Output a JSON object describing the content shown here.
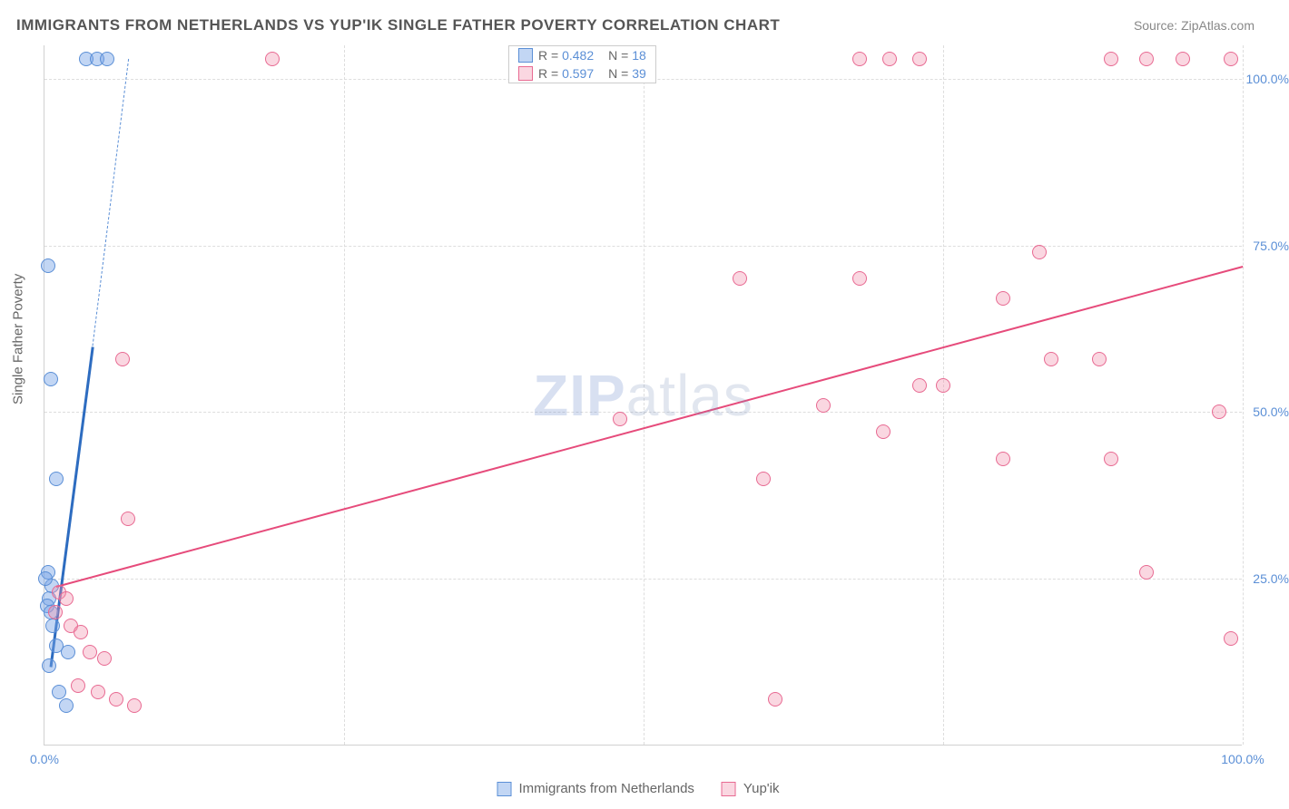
{
  "title": "IMMIGRANTS FROM NETHERLANDS VS YUP'IK SINGLE FATHER POVERTY CORRELATION CHART",
  "source_label": "Source: ZipAtlas.com",
  "y_axis_title": "Single Father Poverty",
  "watermark_a": "ZIP",
  "watermark_b": "atlas",
  "chart": {
    "type": "scatter",
    "xlim": [
      0,
      100
    ],
    "ylim": [
      0,
      105
    ],
    "background_color": "#ffffff",
    "grid_color": "#dddddd",
    "axis_color": "#d0d0d0",
    "tick_fontsize": 14,
    "tick_color": "#5b8fd6",
    "y_ticks": [
      {
        "v": 25,
        "label": "25.0%"
      },
      {
        "v": 50,
        "label": "50.0%"
      },
      {
        "v": 75,
        "label": "75.0%"
      },
      {
        "v": 100,
        "label": "100.0%"
      }
    ],
    "x_ticks": [
      {
        "v": 0,
        "label": "0.0%"
      },
      {
        "v": 25,
        "label": ""
      },
      {
        "v": 50,
        "label": ""
      },
      {
        "v": 75,
        "label": ""
      },
      {
        "v": 100,
        "label": "100.0%"
      }
    ],
    "marker_radius": 8,
    "marker_border_width": 1.2,
    "series": [
      {
        "name": "Immigrants from Netherlands",
        "key": "netherlands",
        "fill": "rgba(120,165,230,0.45)",
        "stroke": "#5b8fd6",
        "R": "0.482",
        "N": "18",
        "trend": {
          "x1": 0.5,
          "y1": 12,
          "x2": 4,
          "y2": 60,
          "width": 3,
          "dash": false,
          "color": "#2d6cc0"
        },
        "trend_ext": {
          "x1": 4,
          "y1": 60,
          "x2": 7,
          "y2": 103,
          "width": 1.2,
          "dash": true,
          "color": "#5b8fd6"
        },
        "points": [
          {
            "x": 0.3,
            "y": 72
          },
          {
            "x": 0.5,
            "y": 55
          },
          {
            "x": 1.0,
            "y": 40
          },
          {
            "x": 0.3,
            "y": 26
          },
          {
            "x": 0.6,
            "y": 24
          },
          {
            "x": 0.4,
            "y": 22
          },
          {
            "x": 0.2,
            "y": 21
          },
          {
            "x": 0.1,
            "y": 25
          },
          {
            "x": 0.5,
            "y": 20
          },
          {
            "x": 0.7,
            "y": 18
          },
          {
            "x": 1.0,
            "y": 15
          },
          {
            "x": 2.0,
            "y": 14
          },
          {
            "x": 0.4,
            "y": 12
          },
          {
            "x": 1.2,
            "y": 8
          },
          {
            "x": 1.8,
            "y": 6
          },
          {
            "x": 3.5,
            "y": 103
          },
          {
            "x": 4.4,
            "y": 103
          },
          {
            "x": 5.2,
            "y": 103
          }
        ]
      },
      {
        "name": "Yup'ik",
        "key": "yupik",
        "fill": "rgba(240,140,170,0.35)",
        "stroke": "#e86a92",
        "R": "0.597",
        "N": "39",
        "trend": {
          "x1": 1,
          "y1": 24,
          "x2": 100,
          "y2": 72,
          "width": 2.2,
          "dash": false,
          "color": "#e64b7b"
        },
        "points": [
          {
            "x": 19,
            "y": 103
          },
          {
            "x": 68,
            "y": 103
          },
          {
            "x": 70.5,
            "y": 103
          },
          {
            "x": 73,
            "y": 103
          },
          {
            "x": 89,
            "y": 103
          },
          {
            "x": 92,
            "y": 103
          },
          {
            "x": 95,
            "y": 103
          },
          {
            "x": 99,
            "y": 103
          },
          {
            "x": 83,
            "y": 74
          },
          {
            "x": 58,
            "y": 70
          },
          {
            "x": 68,
            "y": 70
          },
          {
            "x": 80,
            "y": 67
          },
          {
            "x": 6.5,
            "y": 58
          },
          {
            "x": 84,
            "y": 58
          },
          {
            "x": 88,
            "y": 58
          },
          {
            "x": 73,
            "y": 54
          },
          {
            "x": 75,
            "y": 54
          },
          {
            "x": 65,
            "y": 51
          },
          {
            "x": 98,
            "y": 50
          },
          {
            "x": 48,
            "y": 49
          },
          {
            "x": 70,
            "y": 47
          },
          {
            "x": 80,
            "y": 43
          },
          {
            "x": 89,
            "y": 43
          },
          {
            "x": 60,
            "y": 40
          },
          {
            "x": 7,
            "y": 34
          },
          {
            "x": 92,
            "y": 26
          },
          {
            "x": 1.2,
            "y": 23
          },
          {
            "x": 1.8,
            "y": 22
          },
          {
            "x": 0.9,
            "y": 20
          },
          {
            "x": 2.2,
            "y": 18
          },
          {
            "x": 3.0,
            "y": 17
          },
          {
            "x": 99,
            "y": 16
          },
          {
            "x": 3.8,
            "y": 14
          },
          {
            "x": 5.0,
            "y": 13
          },
          {
            "x": 2.8,
            "y": 9
          },
          {
            "x": 4.5,
            "y": 8
          },
          {
            "x": 6.0,
            "y": 7
          },
          {
            "x": 7.5,
            "y": 6
          },
          {
            "x": 61,
            "y": 7
          }
        ]
      }
    ]
  },
  "legend_top": {
    "r_prefix": "R = ",
    "n_prefix": "N = "
  },
  "legend_bottom": [
    {
      "key": "netherlands",
      "label": "Immigrants from Netherlands"
    },
    {
      "key": "yupik",
      "label": "Yup'ik"
    }
  ]
}
